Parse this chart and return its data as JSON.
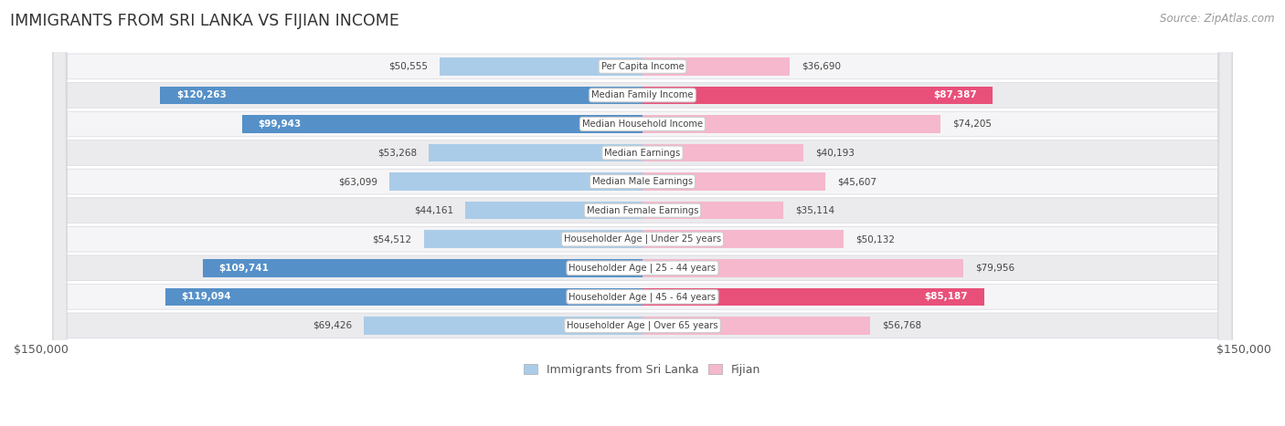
{
  "title": "IMMIGRANTS FROM SRI LANKA VS FIJIAN INCOME",
  "source": "Source: ZipAtlas.com",
  "categories": [
    "Per Capita Income",
    "Median Family Income",
    "Median Household Income",
    "Median Earnings",
    "Median Male Earnings",
    "Median Female Earnings",
    "Householder Age | Under 25 years",
    "Householder Age | 25 - 44 years",
    "Householder Age | 45 - 64 years",
    "Householder Age | Over 65 years"
  ],
  "sri_lanka_values": [
    50555,
    120263,
    99943,
    53268,
    63099,
    44161,
    54512,
    109741,
    119094,
    69426
  ],
  "fijian_values": [
    36690,
    87387,
    74205,
    40193,
    45607,
    35114,
    50132,
    79956,
    85187,
    56768
  ],
  "sri_lanka_light": "#aacce8",
  "sri_lanka_dark": "#5590c8",
  "fijian_light": "#f5b8cc",
  "fijian_dark": "#e8507a",
  "max_value": 150000,
  "background_color": "#ffffff",
  "row_bg_light": "#f5f5f7",
  "row_bg_dark": "#ebebee",
  "bar_height": 0.62,
  "legend_sri_lanka": "Immigrants from Sri Lanka",
  "legend_fijian": "Fijian",
  "dark_threshold": 80000
}
